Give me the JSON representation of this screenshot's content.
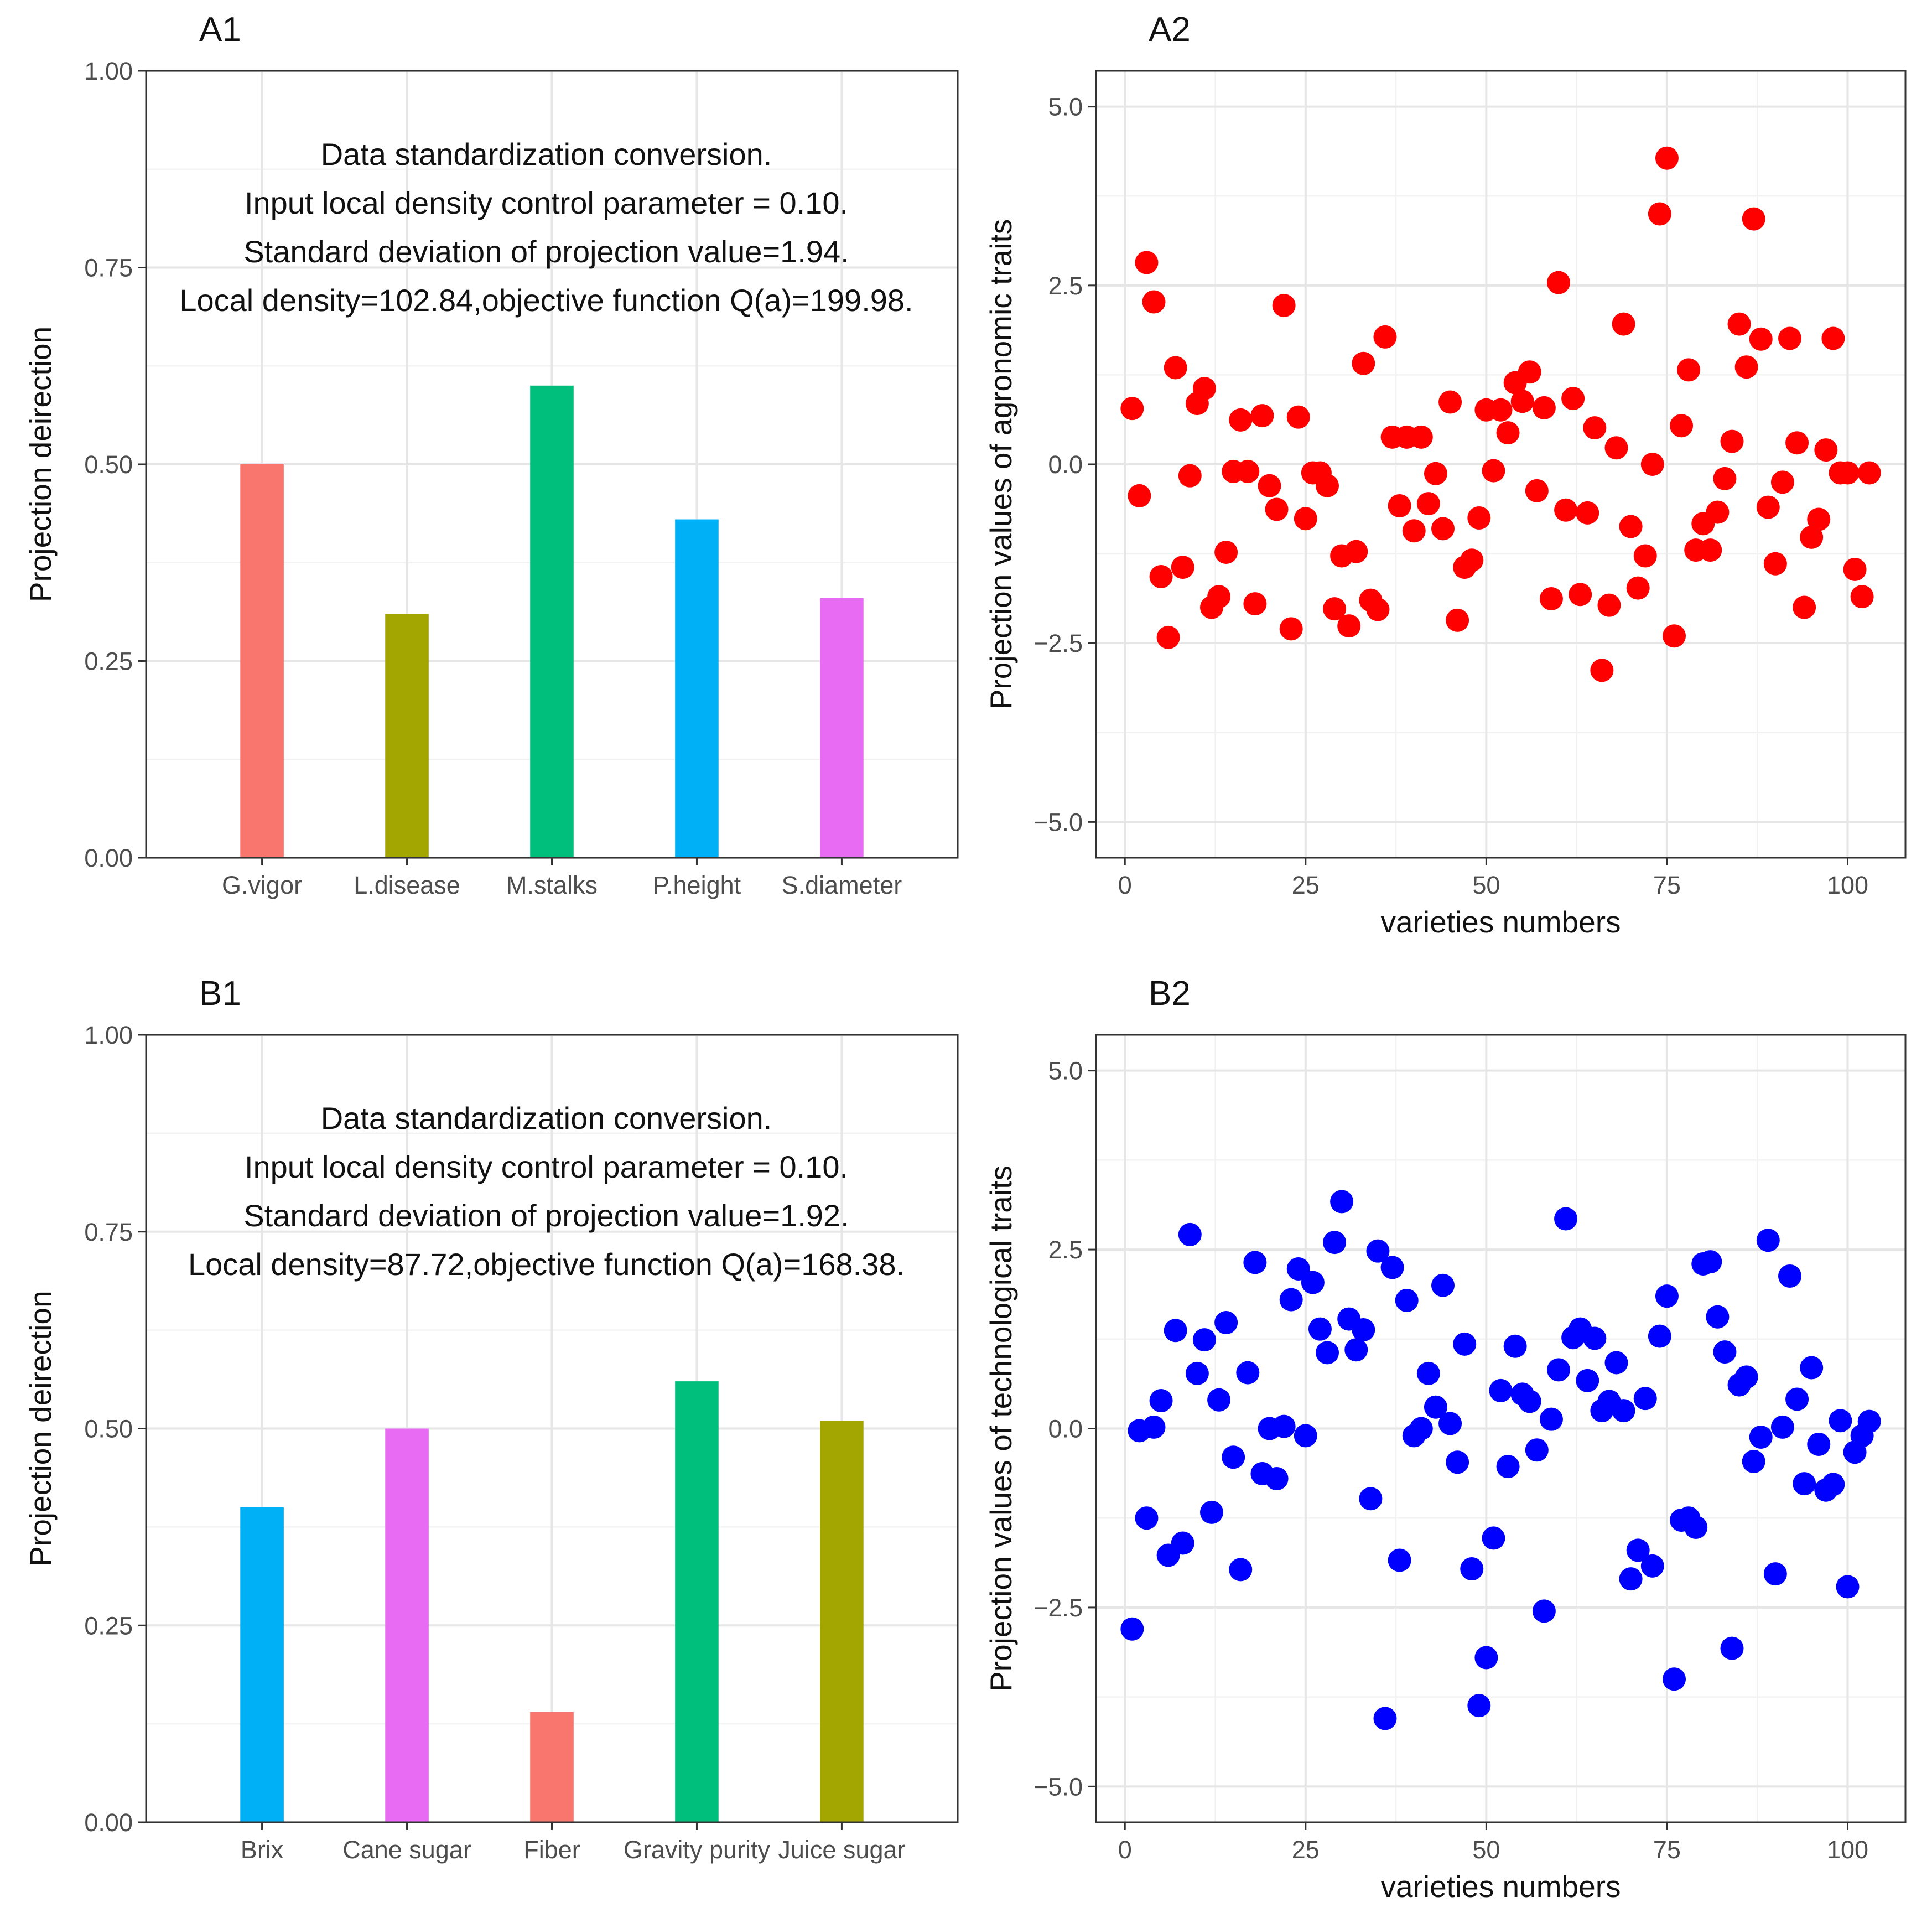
{
  "chart_data": [
    {
      "id": "A1",
      "panel_label": "A1",
      "type": "bar",
      "categories": [
        "G.vigor",
        "L.disease",
        "M.stalks",
        "P.height",
        "S.diameter"
      ],
      "values": [
        0.5,
        0.31,
        0.6,
        0.43,
        0.33
      ],
      "colors": [
        "#F8766D",
        "#A3A500",
        "#00BF7D",
        "#00B0F6",
        "#E76BF3"
      ],
      "xlabel": "",
      "ylabel": "Projection deirection",
      "ylim": [
        0,
        1
      ],
      "yticks": [
        0,
        0.25,
        0.5,
        0.75,
        1
      ],
      "ytick_labels": [
        "0.00",
        "0.25",
        "0.50",
        "0.75",
        "1.00"
      ],
      "annotations": [
        "Data standardization conversion.",
        "Input local density control parameter = 0.10.",
        "Standard deviation of projection value=1.94.",
        "Local density=102.84,objective function Q(a)=199.98."
      ],
      "grid": true
    },
    {
      "id": "A2",
      "panel_label": "A2",
      "type": "scatter",
      "color": "#FF0000",
      "xlabel": "varieties numbers",
      "ylabel": "Projection values of agronomic traits",
      "xlim": [
        -4,
        108
      ],
      "ylim": [
        -5.5,
        5.5
      ],
      "xticks": [
        0,
        25,
        50,
        75,
        100
      ],
      "xtick_labels": [
        "0",
        "25",
        "50",
        "75",
        "100"
      ],
      "yticks": [
        -5,
        -2.5,
        0,
        2.5,
        5
      ],
      "ytick_labels": [
        "−5.0",
        "−2.5",
        "0.0",
        "2.5",
        "5.0"
      ],
      "x": [
        1,
        2,
        3,
        4,
        5,
        6,
        7,
        8,
        9,
        10,
        11,
        12,
        13,
        14,
        15,
        16,
        17,
        18,
        19,
        20,
        21,
        22,
        23,
        24,
        25,
        26,
        27,
        28,
        29,
        30,
        31,
        32,
        33,
        34,
        35,
        36,
        37,
        38,
        39,
        40,
        41,
        42,
        43,
        44,
        45,
        46,
        47,
        48,
        49,
        50,
        51,
        52,
        53,
        54,
        55,
        56,
        57,
        58,
        59,
        60,
        61,
        62,
        63,
        64,
        65,
        66,
        67,
        68,
        69,
        70,
        71,
        72,
        73,
        74,
        75,
        76,
        77,
        78,
        79,
        80,
        81,
        82,
        83,
        84,
        85,
        86,
        87,
        88,
        89,
        90,
        91,
        92,
        93,
        94,
        95,
        96,
        97,
        98,
        99,
        100,
        101,
        102,
        103
      ],
      "y": [
        0.78,
        -0.44,
        2.82,
        2.27,
        -1.57,
        -2.42,
        1.35,
        -1.44,
        -0.16,
        0.85,
        1.06,
        -2.0,
        -1.85,
        -1.23,
        -0.1,
        0.62,
        -0.1,
        -1.95,
        0.68,
        -0.3,
        -0.63,
        2.22,
        -2.3,
        0.66,
        -0.76,
        -0.12,
        -0.12,
        -0.3,
        -2.02,
        -1.28,
        -2.26,
        -1.22,
        1.41,
        -1.9,
        -2.03,
        1.78,
        0.38,
        -0.58,
        0.38,
        -0.93,
        0.38,
        -0.55,
        -0.13,
        -0.9,
        0.87,
        -2.18,
        -1.44,
        -1.34,
        -0.75,
        0.76,
        -0.09,
        0.76,
        0.44,
        1.14,
        0.88,
        1.29,
        -0.37,
        0.79,
        -1.88,
        2.54,
        -0.64,
        0.92,
        -1.82,
        -0.68,
        0.51,
        -2.88,
        -1.97,
        0.23,
        1.96,
        -0.87,
        -1.73,
        -1.28,
        0.0,
        3.5,
        4.28,
        -2.4,
        0.54,
        1.32,
        -1.2,
        -0.83,
        -1.2,
        -0.67,
        -0.2,
        0.32,
        1.96,
        1.36,
        3.43,
        1.75,
        -0.6,
        -1.39,
        -0.25,
        1.76,
        0.3,
        -2.0,
        -1.02,
        -0.77,
        0.2,
        1.76,
        -0.12,
        -0.12,
        -1.47,
        -1.85,
        -0.12
      ],
      "grid": true
    },
    {
      "id": "B1",
      "panel_label": "B1",
      "type": "bar",
      "categories": [
        "Brix",
        "Cane sugar",
        "Fiber",
        "Gravity purity",
        "Juice sugar"
      ],
      "values": [
        0.4,
        0.5,
        0.14,
        0.56,
        0.51
      ],
      "colors": [
        "#00B0F6",
        "#E76BF3",
        "#F8766D",
        "#00BF7D",
        "#A3A500"
      ],
      "xlabel": "",
      "ylabel": "Projection deirection",
      "ylim": [
        0,
        1
      ],
      "yticks": [
        0,
        0.25,
        0.5,
        0.75,
        1
      ],
      "ytick_labels": [
        "0.00",
        "0.25",
        "0.50",
        "0.75",
        "1.00"
      ],
      "annotations": [
        "Data standardization conversion.",
        "Input local density control parameter = 0.10.",
        "Standard deviation of projection value=1.92.",
        "Local density=87.72,objective function Q(a)=168.38."
      ],
      "grid": true
    },
    {
      "id": "B2",
      "panel_label": "B2",
      "type": "scatter",
      "color": "#0000FF",
      "xlabel": "varieties numbers",
      "ylabel": "Projection values of technological traits",
      "xlim": [
        -4,
        108
      ],
      "ylim": [
        -5.5,
        5.5
      ],
      "xticks": [
        0,
        25,
        50,
        75,
        100
      ],
      "xtick_labels": [
        "0",
        "25",
        "50",
        "75",
        "100"
      ],
      "yticks": [
        -5,
        -2.5,
        0,
        2.5,
        5
      ],
      "ytick_labels": [
        "−5.0",
        "−2.5",
        "0.0",
        "2.5",
        "5.0"
      ],
      "x": [
        1,
        2,
        3,
        4,
        5,
        6,
        7,
        8,
        9,
        10,
        11,
        12,
        13,
        14,
        15,
        16,
        17,
        18,
        19,
        20,
        21,
        22,
        23,
        24,
        25,
        26,
        27,
        28,
        29,
        30,
        31,
        32,
        33,
        34,
        35,
        36,
        37,
        38,
        39,
        40,
        41,
        42,
        43,
        44,
        45,
        46,
        47,
        48,
        49,
        50,
        51,
        52,
        53,
        54,
        55,
        56,
        57,
        58,
        59,
        60,
        61,
        62,
        63,
        64,
        65,
        66,
        67,
        68,
        69,
        70,
        71,
        72,
        73,
        74,
        75,
        76,
        77,
        78,
        79,
        80,
        81,
        82,
        83,
        84,
        85,
        86,
        87,
        88,
        89,
        90,
        91,
        92,
        93,
        94,
        95,
        96,
        97,
        98,
        99,
        100,
        101,
        102,
        103
      ],
      "y": [
        -2.8,
        -0.03,
        -1.25,
        0.02,
        0.39,
        -1.77,
        1.37,
        -1.6,
        2.71,
        0.77,
        1.24,
        -1.17,
        0.4,
        1.48,
        -0.4,
        -1.97,
        0.78,
        2.32,
        -0.63,
        0.0,
        -0.7,
        0.03,
        1.8,
        2.23,
        -0.1,
        2.04,
        1.39,
        1.06,
        2.6,
        3.17,
        1.53,
        1.1,
        1.38,
        -0.98,
        2.48,
        -4.05,
        2.25,
        -1.84,
        1.79,
        -0.1,
        0.0,
        0.77,
        0.3,
        2.0,
        0.07,
        -0.47,
        1.18,
        -1.96,
        -3.87,
        -3.2,
        -1.53,
        0.53,
        -0.53,
        1.15,
        0.48,
        0.38,
        -0.3,
        -2.55,
        0.13,
        0.82,
        2.93,
        1.27,
        1.39,
        0.67,
        1.26,
        0.25,
        0.38,
        0.92,
        0.25,
        -2.1,
        -1.7,
        0.42,
        -1.92,
        1.29,
        1.85,
        -3.5,
        -1.28,
        -1.25,
        -1.38,
        2.3,
        2.33,
        1.56,
        1.07,
        -3.07,
        0.61,
        0.72,
        -0.46,
        -0.12,
        2.63,
        -2.03,
        0.02,
        2.13,
        0.41,
        -0.77,
        0.85,
        -0.22,
        -0.86,
        -0.78,
        0.11,
        -2.21,
        -0.33,
        -0.1,
        0.1
      ],
      "grid": true
    }
  ]
}
